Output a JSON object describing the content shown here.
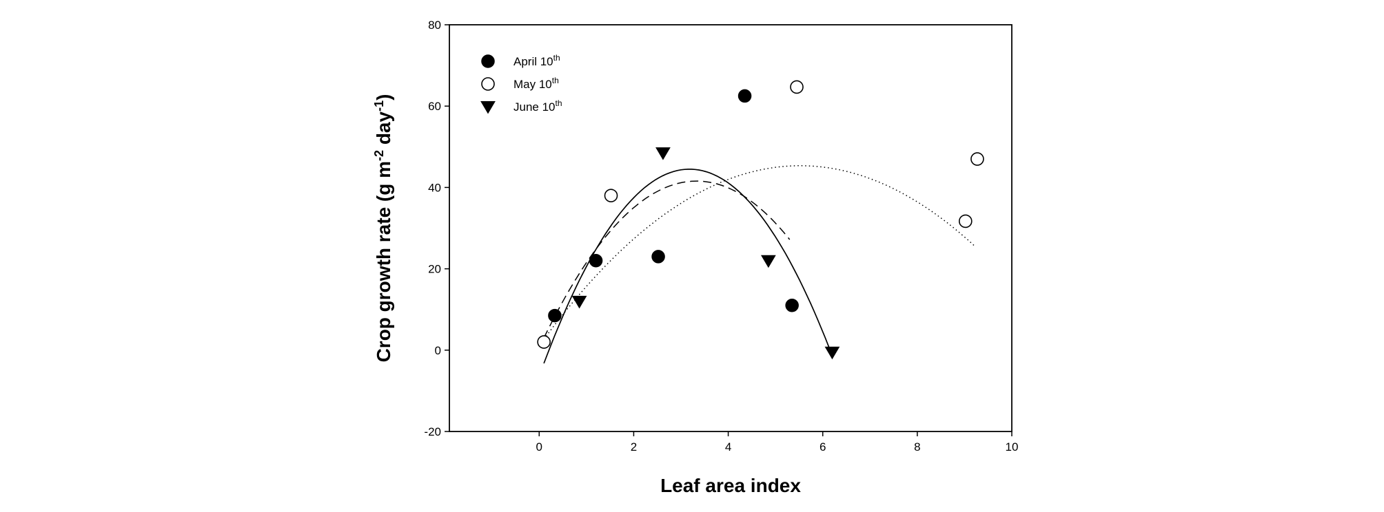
{
  "chart_data": {
    "type": "scatter",
    "xlabel": "Leaf area index",
    "ylabel": {
      "parts": [
        {
          "text": "Crop growth rate (g m",
          "sup": false
        },
        {
          "text": "-2",
          "sup": true
        },
        {
          "text": " day",
          "sup": false
        },
        {
          "text": "-1",
          "sup": true
        },
        {
          "text": ")",
          "sup": false
        }
      ]
    },
    "xlim": [
      -1.9,
      10
    ],
    "ylim": [
      -20,
      80
    ],
    "xticks": [
      0,
      2,
      4,
      6,
      8,
      10
    ],
    "xtick_labels": [
      "0",
      "2",
      "4",
      "6",
      "8",
      "10"
    ],
    "yticks": [
      -20,
      0,
      20,
      40,
      60,
      80
    ],
    "ytick_labels": [
      "-20",
      "0",
      "20",
      "40",
      "60",
      "80"
    ],
    "grid": false,
    "legend_position": "top-left",
    "series": [
      {
        "name": "April 10",
        "name_sup": "th",
        "marker": "circle-filled",
        "line_style": "dashed",
        "x": [
          0.33,
          1.2,
          2.52,
          4.35,
          5.35
        ],
        "y": [
          8.5,
          22,
          23,
          62.5,
          11
        ],
        "fit": {
          "a": -3.7,
          "b": 24.63,
          "c": 0.58,
          "x_range": [
            0.1,
            5.3
          ]
        }
      },
      {
        "name": "May 10",
        "name_sup": "th",
        "marker": "circle-open",
        "line_style": "dotted",
        "x": [
          0.1,
          1.52,
          5.45,
          9.02,
          9.27
        ],
        "y": [
          2,
          38,
          64.7,
          31.7,
          47
        ],
        "fit": {
          "a": -1.45,
          "b": 16.02,
          "c": 1.1,
          "x_range": [
            0.1,
            9.2
          ]
        }
      },
      {
        "name": "June 10",
        "name_sup": "th",
        "marker": "triangle-down-filled",
        "line_style": "solid",
        "x": [
          0.85,
          2.62,
          4.85,
          6.2
        ],
        "y": [
          12,
          48.5,
          22,
          -0.5
        ],
        "fit": {
          "a": -5.03,
          "b": 32.0,
          "c": -6.4,
          "x_range": [
            0.1,
            6.2
          ]
        }
      }
    ]
  }
}
